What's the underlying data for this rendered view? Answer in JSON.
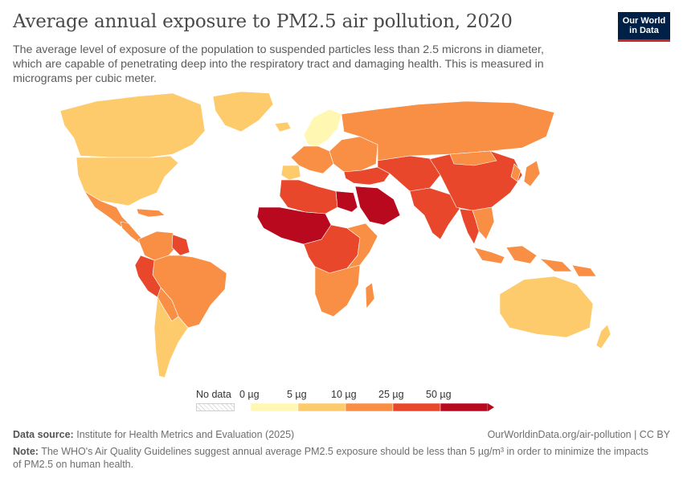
{
  "header": {
    "title": "Average annual exposure to PM2.5 air pollution, 2020",
    "subtitle": "The average level of exposure of the population to suspended particles less than 2.5 microns in diameter, which are capable of penetrating deep into the respiratory tract and damaging health. This is measured in micrograms per cubic meter."
  },
  "logo": {
    "line1": "Our World",
    "line2": "in Data"
  },
  "legend": {
    "no_data_label": "No data",
    "bins": [
      {
        "label": "0 µg",
        "color": "#fff7b2"
      },
      {
        "label": "5 µg",
        "color": "#fdcb6c"
      },
      {
        "label": "10 µg",
        "color": "#f88f44"
      },
      {
        "label": "25 µg",
        "color": "#e8472c"
      },
      {
        "label": "50 µg",
        "color": "#b8091e"
      }
    ],
    "colors": [
      "#fff7b2",
      "#fdcb6c",
      "#f88f44",
      "#e8472c",
      "#b8091e"
    ]
  },
  "footer": {
    "source_label": "Data source:",
    "source_text": "Institute for Health Metrics and Evaluation (2025)",
    "url": "OurWorldinData.org/air-pollution | CC BY",
    "note_label": "Note:",
    "note_text": "The WHO's Air Quality Guidelines suggest annual average PM2.5 exposure should be less than 5 µg/m³ in order to minimize the impacts of PM2.5 on human health."
  },
  "map": {
    "regions": [
      {
        "name": "canada",
        "band": 1
      },
      {
        "name": "greenland",
        "band": 1
      },
      {
        "name": "usa",
        "band": 1
      },
      {
        "name": "mexico",
        "band": 2
      },
      {
        "name": "central-america",
        "band": 2
      },
      {
        "name": "caribbean",
        "band": 2
      },
      {
        "name": "colombia-venezuela",
        "band": 2
      },
      {
        "name": "guyana",
        "band": 3
      },
      {
        "name": "brazil",
        "band": 2
      },
      {
        "name": "peru",
        "band": 3
      },
      {
        "name": "bolivia-paraguay",
        "band": 2
      },
      {
        "name": "chile-argentina",
        "band": 1
      },
      {
        "name": "iceland",
        "band": 1
      },
      {
        "name": "scandinavia",
        "band": 0
      },
      {
        "name": "western-europe",
        "band": 2
      },
      {
        "name": "iberia",
        "band": 1
      },
      {
        "name": "eastern-europe",
        "band": 2
      },
      {
        "name": "russia",
        "band": 2
      },
      {
        "name": "turkey-caucasus",
        "band": 3
      },
      {
        "name": "north-africa",
        "band": 3
      },
      {
        "name": "egypt",
        "band": 4
      },
      {
        "name": "sahel",
        "band": 4
      },
      {
        "name": "arabia",
        "band": 4
      },
      {
        "name": "iran-central-asia",
        "band": 3
      },
      {
        "name": "south-asia",
        "band": 3
      },
      {
        "name": "china",
        "band": 3
      },
      {
        "name": "mongolia",
        "band": 2
      },
      {
        "name": "korea-japan",
        "band": 2
      },
      {
        "name": "southeast-asia",
        "band": 2
      },
      {
        "name": "myanmar-thailand",
        "band": 3
      },
      {
        "name": "indonesia",
        "band": 2
      },
      {
        "name": "central-africa",
        "band": 3
      },
      {
        "name": "east-africa",
        "band": 2
      },
      {
        "name": "southern-africa",
        "band": 2
      },
      {
        "name": "madagascar",
        "band": 2
      },
      {
        "name": "australia",
        "band": 1
      },
      {
        "name": "new-zealand",
        "band": 1
      },
      {
        "name": "png",
        "band": 2
      }
    ]
  }
}
